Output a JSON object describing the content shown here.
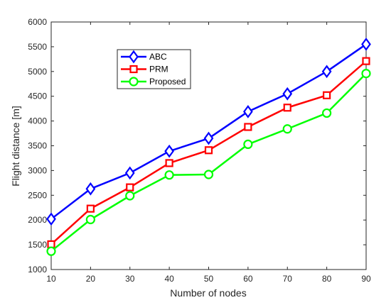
{
  "chart_data": {
    "type": "line",
    "xlabel": "Number of nodes",
    "ylabel": "Flight distance [m]",
    "x": [
      10,
      20,
      30,
      40,
      50,
      60,
      70,
      80,
      90
    ],
    "xlim": [
      10,
      90
    ],
    "ylim": [
      1000,
      6000
    ],
    "xticks": [
      "10",
      "20",
      "30",
      "40",
      "50",
      "60",
      "70",
      "80",
      "90"
    ],
    "yticks": [
      "1000",
      "1500",
      "2000",
      "2500",
      "3000",
      "3500",
      "4000",
      "4500",
      "5000",
      "5500",
      "6000"
    ],
    "grid": false,
    "legend_position": "top-left",
    "series": [
      {
        "name": "ABC",
        "color": "#0000ff",
        "marker": "diamond",
        "values": [
          2020,
          2630,
          2950,
          3390,
          3650,
          4190,
          4550,
          5000,
          5550
        ]
      },
      {
        "name": "PRM",
        "color": "#ff0000",
        "marker": "square",
        "values": [
          1510,
          2230,
          2660,
          3150,
          3410,
          3880,
          4270,
          4520,
          5210
        ]
      },
      {
        "name": "Proposed",
        "color": "#00ff00",
        "marker": "circle",
        "values": [
          1370,
          2010,
          2490,
          2910,
          2920,
          3530,
          3840,
          4160,
          4960
        ]
      }
    ]
  }
}
